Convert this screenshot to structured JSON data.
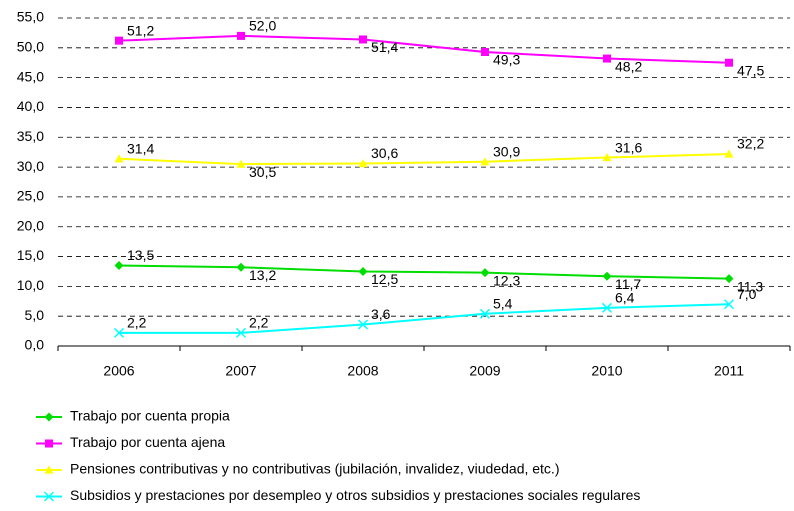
{
  "chart_data": {
    "type": "line",
    "categories": [
      "2006",
      "2007",
      "2008",
      "2009",
      "2010",
      "2011"
    ],
    "series": [
      {
        "name": "Trabajo por cuenta propia",
        "color": "#00dd00",
        "marker": "diamond",
        "values": [
          13.5,
          13.2,
          12.5,
          12.3,
          11.7,
          11.3
        ],
        "value_labels": [
          "13,5",
          "13,2",
          "12,5",
          "12,3",
          "11,7",
          "11,3"
        ]
      },
      {
        "name": "Trabajo por cuenta ajena",
        "color": "#ff00ff",
        "marker": "square",
        "values": [
          51.2,
          52.0,
          51.4,
          49.3,
          48.2,
          47.5
        ],
        "value_labels": [
          "51,2",
          "52,0",
          "51,4",
          "49,3",
          "48,2",
          "47,5"
        ]
      },
      {
        "name": "Pensiones contributivas y no contributivas (jubilación, invalidez, viudedad, etc.)",
        "color": "#ffff00",
        "marker": "triangle",
        "values": [
          31.4,
          30.5,
          30.6,
          30.9,
          31.6,
          32.2
        ],
        "value_labels": [
          "31,4",
          "30,5",
          "30,6",
          "30,9",
          "31,6",
          "32,2"
        ]
      },
      {
        "name": "Subsidios y prestaciones por desempleo y otros subsidios y prestaciones sociales regulares",
        "color": "#00ffff",
        "marker": "x",
        "values": [
          2.2,
          2.2,
          3.6,
          5.4,
          6.4,
          7.0
        ],
        "value_labels": [
          "2,2",
          "2,2",
          "3,6",
          "5,4",
          "6,4",
          "7,0"
        ]
      }
    ],
    "ylim": [
      0,
      55
    ],
    "yticks": [
      {
        "value": 0,
        "label": "0,0"
      },
      {
        "value": 5,
        "label": "5,0"
      },
      {
        "value": 10,
        "label": "10,0"
      },
      {
        "value": 15,
        "label": "15,0"
      },
      {
        "value": 20,
        "label": "20,0"
      },
      {
        "value": 25,
        "label": "25,0"
      },
      {
        "value": 30,
        "label": "30,0"
      },
      {
        "value": 35,
        "label": "35,0"
      },
      {
        "value": 40,
        "label": "40,0"
      },
      {
        "value": 45,
        "label": "45,0"
      },
      {
        "value": 50,
        "label": "50,0"
      },
      {
        "value": 55,
        "label": "55,0"
      }
    ],
    "grid": true,
    "legend": "bottom"
  }
}
